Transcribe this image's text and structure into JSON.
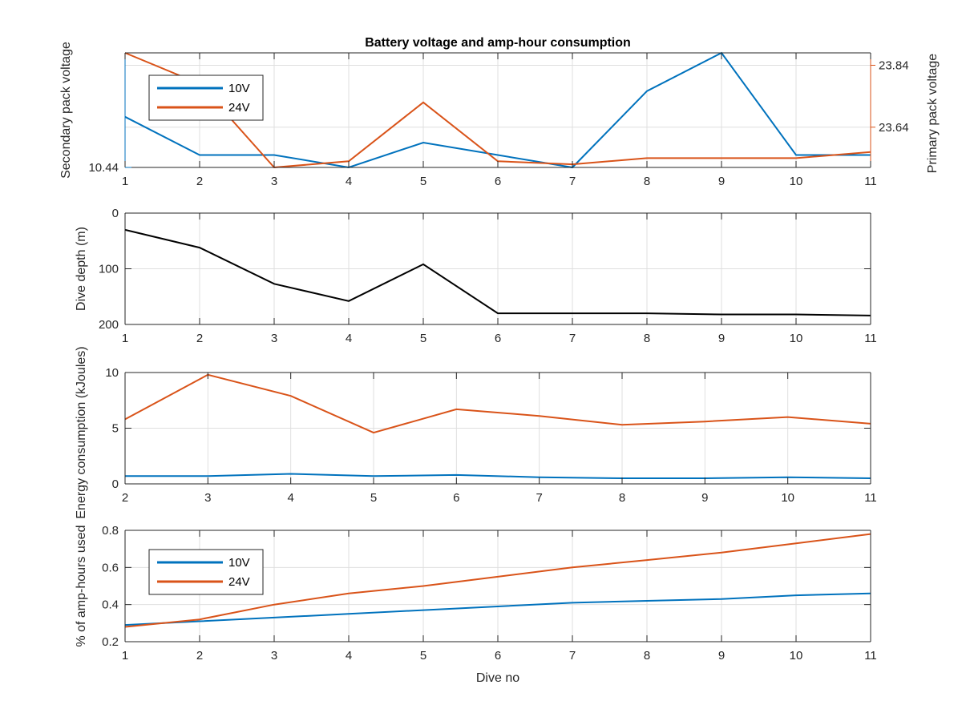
{
  "colors": {
    "blue": "#0072BD",
    "orange": "#D95319",
    "black": "#000000",
    "axis": "#262626",
    "grid": "#dfdfdf"
  },
  "chart_data": [
    {
      "type": "line",
      "title": "Battery voltage and amp-hour consumption",
      "xlabel": "",
      "ylabel": "Secondary pack voltage",
      "ylabel_right": "Primary pack voltage",
      "xlim": [
        1,
        11
      ],
      "ylim": [
        10.44,
        10.56
      ],
      "ylim_right": [
        23.51,
        23.88
      ],
      "xticks": [
        1,
        2,
        3,
        4,
        5,
        6,
        7,
        8,
        9,
        10,
        11
      ],
      "yticks": [
        10.44
      ],
      "yticks_right": [
        23.64,
        23.84
      ],
      "grid": true,
      "legend": "top-left",
      "series": [
        {
          "name": "10V",
          "axis": "left",
          "color": "#0072BD",
          "x": [
            1,
            2,
            3,
            4,
            5,
            6,
            7,
            8,
            9,
            10,
            11
          ],
          "y": [
            10.493,
            10.453,
            10.453,
            10.44,
            10.466,
            10.453,
            10.44,
            10.52,
            10.56,
            10.453,
            10.453
          ]
        },
        {
          "name": "24V",
          "axis": "right",
          "color": "#D95319",
          "x": [
            1,
            2,
            3,
            4,
            5,
            6,
            7,
            8,
            9,
            10,
            11
          ],
          "y": [
            23.88,
            23.78,
            23.51,
            23.53,
            23.72,
            23.53,
            23.52,
            23.54,
            23.54,
            23.54,
            23.56
          ]
        }
      ]
    },
    {
      "type": "line",
      "title": "",
      "xlabel": "",
      "ylabel": "Dive depth (m)",
      "xlim": [
        1,
        11
      ],
      "ylim": [
        0,
        200
      ],
      "yreverse": true,
      "xticks": [
        1,
        2,
        3,
        4,
        5,
        6,
        7,
        8,
        9,
        10,
        11
      ],
      "yticks": [
        0,
        100,
        200
      ],
      "grid": true,
      "series": [
        {
          "color": "#000000",
          "x": [
            1,
            2,
            3,
            4,
            5,
            6,
            7,
            8,
            9,
            10,
            11
          ],
          "y": [
            30,
            62,
            127,
            158,
            92,
            180,
            180,
            180,
            182,
            182,
            184
          ]
        }
      ]
    },
    {
      "type": "line",
      "title": "",
      "xlabel": "",
      "ylabel": "Energy consumption (kJoules)",
      "xlim": [
        2,
        11
      ],
      "ylim": [
        0,
        10
      ],
      "xticks": [
        2,
        3,
        4,
        5,
        6,
        7,
        8,
        9,
        10,
        11
      ],
      "yticks": [
        0,
        5,
        10
      ],
      "grid": true,
      "series": [
        {
          "color": "#D95319",
          "x": [
            2,
            3,
            4,
            5,
            6,
            7,
            8,
            9,
            10,
            11
          ],
          "y": [
            5.8,
            9.8,
            7.9,
            4.6,
            6.7,
            6.1,
            5.3,
            5.6,
            6.0,
            5.4
          ]
        },
        {
          "color": "#0072BD",
          "x": [
            2,
            3,
            4,
            5,
            6,
            7,
            8,
            9,
            10,
            11
          ],
          "y": [
            0.7,
            0.7,
            0.9,
            0.7,
            0.8,
            0.6,
            0.5,
            0.5,
            0.6,
            0.5
          ]
        }
      ]
    },
    {
      "type": "line",
      "title": "",
      "xlabel": "Dive no",
      "ylabel": "% of amp-hours used",
      "xlim": [
        1,
        11
      ],
      "ylim": [
        0.2,
        0.8
      ],
      "xticks": [
        1,
        2,
        3,
        4,
        5,
        6,
        7,
        8,
        9,
        10,
        11
      ],
      "yticks": [
        0.2,
        0.4,
        0.6,
        0.8
      ],
      "grid": true,
      "legend": "top-left",
      "series": [
        {
          "name": "10V",
          "color": "#0072BD",
          "x": [
            1,
            2,
            3,
            4,
            5,
            6,
            7,
            8,
            9,
            10,
            11
          ],
          "y": [
            0.29,
            0.31,
            0.33,
            0.35,
            0.37,
            0.39,
            0.41,
            0.42,
            0.43,
            0.45,
            0.46
          ]
        },
        {
          "name": "24V",
          "color": "#D95319",
          "x": [
            1,
            2,
            3,
            4,
            5,
            6,
            7,
            8,
            9,
            10,
            11
          ],
          "y": [
            0.28,
            0.32,
            0.4,
            0.46,
            0.5,
            0.55,
            0.6,
            0.64,
            0.68,
            0.73,
            0.78
          ]
        }
      ]
    }
  ]
}
